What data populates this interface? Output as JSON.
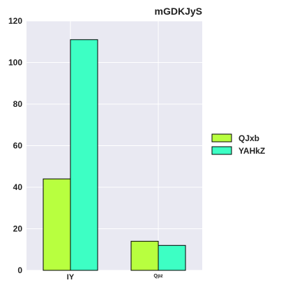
{
  "chart_data": {
    "type": "bar",
    "title": "mGDKJyS",
    "xlabel": "",
    "ylabel": "",
    "categories": [
      "IY",
      "Qpz"
    ],
    "series": [
      {
        "name": "QJxb",
        "values": [
          44,
          14
        ],
        "color": "#b8ff3f"
      },
      {
        "name": "YAHkZ",
        "values": [
          111,
          12
        ],
        "color": "#3dffc4"
      }
    ],
    "ylim": [
      0,
      120
    ],
    "yticks": [
      0,
      20,
      40,
      60,
      80,
      100,
      120
    ],
    "grid": true,
    "legend_position": "right",
    "background_color": "#e9e9f2",
    "grid_color": "#ffffff",
    "bar_edge_color": "#000000"
  }
}
